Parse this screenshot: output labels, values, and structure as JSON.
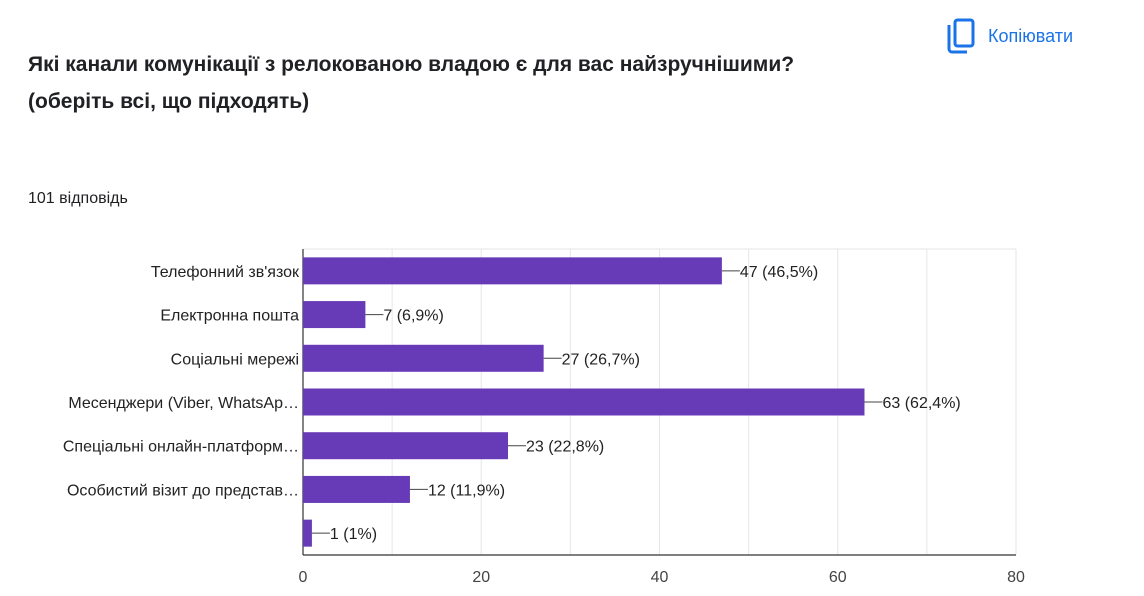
{
  "header": {
    "title_line1": "Які канали комунікації з релокованою владою є для вас найзручнішими?",
    "title_line2": "(оберіть всі, що підходять)",
    "responses": "101 відповідь",
    "copy_label": "Копіювати"
  },
  "colors": {
    "bar": "#673ab7",
    "accent": "#1a73e8",
    "grid": "#e6e6e6",
    "axis": "#333333"
  },
  "chart_data": {
    "type": "bar",
    "orientation": "horizontal",
    "categories": [
      "Телефонний зв'язок",
      "Електронна пошта",
      "Соціальні мережі",
      "Месенджери (Viber, WhatsAp…",
      "Спеціальні онлайн-платформ…",
      "Особистий візит до представ…",
      ""
    ],
    "values": [
      47,
      7,
      27,
      63,
      23,
      12,
      1
    ],
    "value_labels": [
      "47 (46,5%)",
      "7 (6,9%)",
      "27 (26,7%)",
      "63 (62,4%)",
      "23 (22,8%)",
      "12 (11,9%)",
      "1 (1%)"
    ],
    "x_ticks": [
      "0",
      "20",
      "40",
      "60",
      "80"
    ],
    "xlim": [
      0,
      80
    ],
    "grid": true,
    "legend": "none"
  }
}
